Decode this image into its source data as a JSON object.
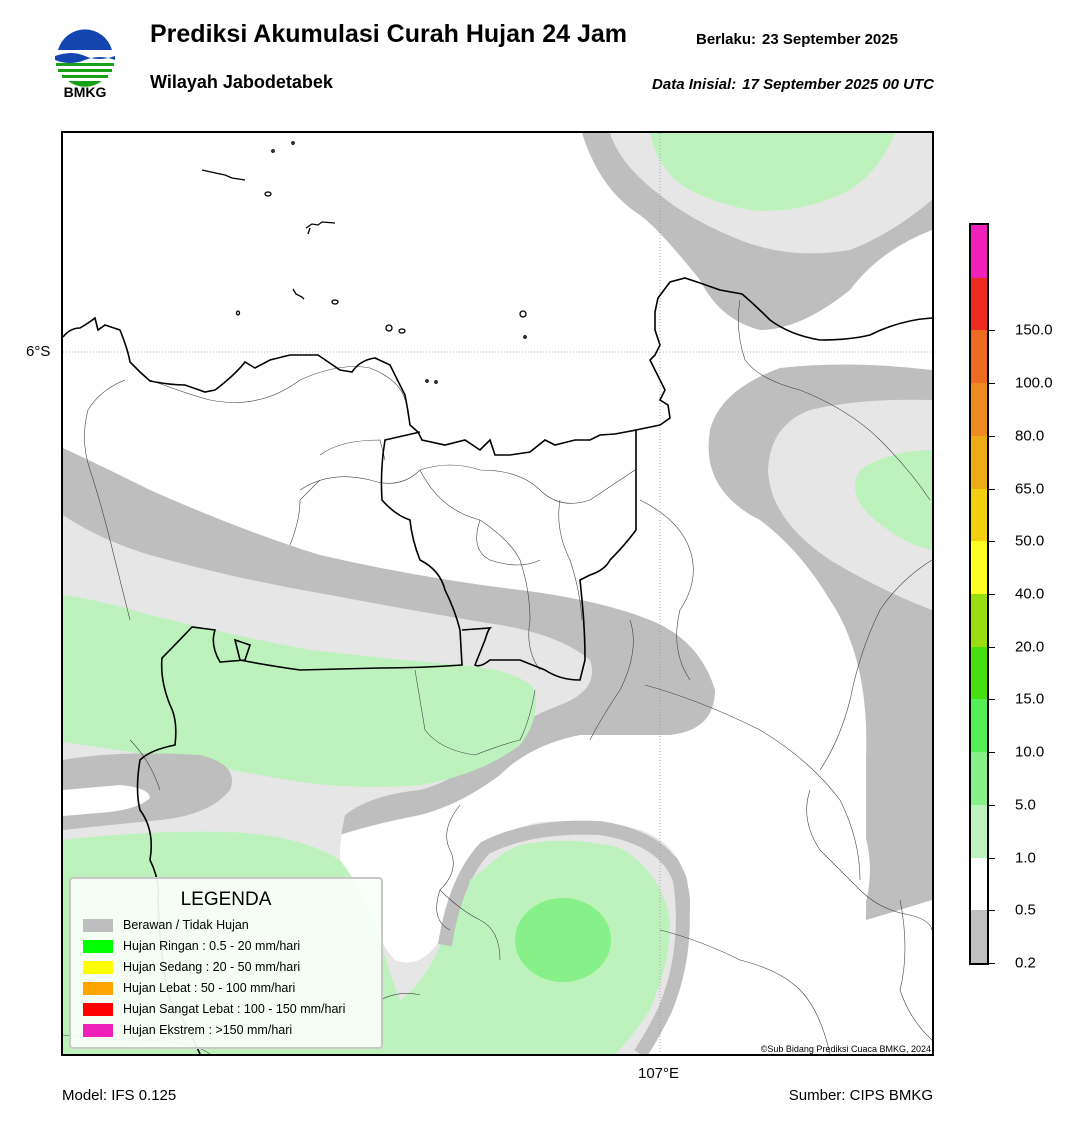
{
  "header": {
    "logo_text": "BMKG",
    "title": "Prediksi Akumulasi Curah Hujan 24 Jam",
    "valid_label": "Berlaku:",
    "valid_date": "23 September 2025",
    "region": "Wilayah Jabodetabek",
    "init_label": "Data Inisial:",
    "init_date": "17 September 2025 00 UTC"
  },
  "map": {
    "lat_label": "6°S",
    "lon_label": "107°E",
    "credit": "©Sub Bidang Prediksi Cuaca BMKG, 2024",
    "colors": {
      "cloudy": "#bebebe",
      "light_gray": "#e6e6e6",
      "pale_green": "#bdf2bd",
      "mid_green": "#88f088",
      "coast": "#000000",
      "border": "#555555",
      "grid": "#999999"
    }
  },
  "legend": {
    "title": "LEGENDA",
    "items": [
      {
        "label": "Berawan / Tidak Hujan",
        "color": "#bebebe"
      },
      {
        "label": "Hujan Ringan : 0.5 - 20 mm/hari",
        "color": "#00ff00"
      },
      {
        "label": "Hujan Sedang : 20 - 50 mm/hari",
        "color": "#ffff00"
      },
      {
        "label": "Hujan Lebat : 50 - 100 mm/hari",
        "color": "#ffa500"
      },
      {
        "label": "Hujan Sangat Lebat : 100 - 150 mm/hari",
        "color": "#ff0000"
      },
      {
        "label": "Hujan Ekstrem : >150 mm/hari",
        "color": "#ee22bb"
      }
    ]
  },
  "colorbar": {
    "ticks": [
      "0.2",
      "0.5",
      "1.0",
      "5.0",
      "10.0",
      "15.0",
      "20.0",
      "40.0",
      "50.0",
      "65.0",
      "80.0",
      "100.0",
      "150.0"
    ],
    "colors": [
      "#c0c0c0",
      "#ffffff",
      "#bdf2bd",
      "#88f088",
      "#55ee55",
      "#44e011",
      "#99dd11",
      "#ffff22",
      "#f2d010",
      "#efaa18",
      "#ef8a20",
      "#ee6a20",
      "#ee2a20",
      "#ee22bb"
    ]
  },
  "footer": {
    "model": "Model: IFS 0.125",
    "source": "Sumber: CIPS BMKG"
  }
}
